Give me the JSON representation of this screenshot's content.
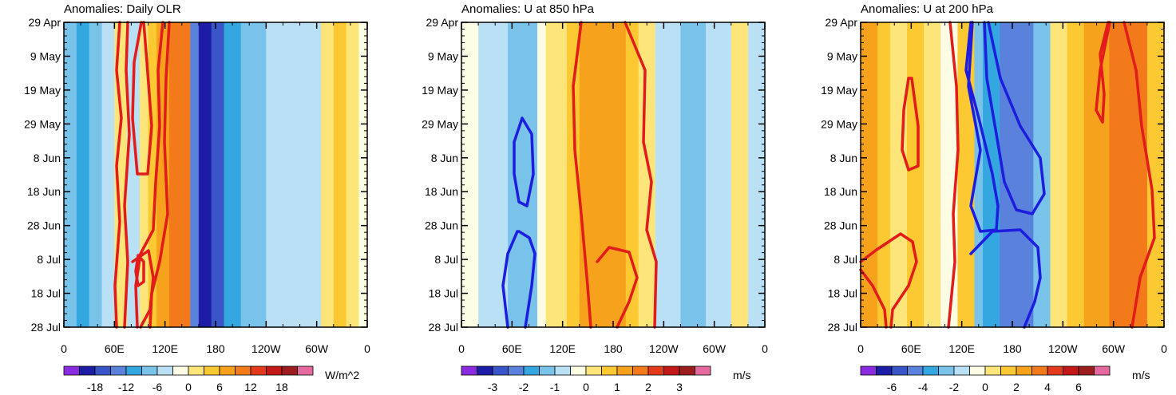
{
  "figure": {
    "panels": [
      {
        "title": "Anomalies: Daily OLR",
        "units": "W/m^2",
        "colorbar_labels": [
          "-18",
          "-12",
          "-6",
          "0",
          "6",
          "12",
          "18"
        ]
      },
      {
        "title": "Anomalies: U at 850 hPa",
        "units": "m/s",
        "colorbar_labels": [
          "-3",
          "-2",
          "-1",
          "0",
          "1",
          "2",
          "3"
        ]
      },
      {
        "title": "Anomalies: U at 200 hPa",
        "units": "m/s",
        "colorbar_labels": [
          "-6",
          "-4",
          "-2",
          "0",
          "2",
          "4",
          "6"
        ]
      }
    ]
  },
  "chart_data": [
    {
      "type": "heatmap",
      "title": "Anomalies: Daily OLR",
      "xlabel": "Longitude",
      "ylabel": "Date",
      "xticks": [
        "0",
        "60E",
        "120E",
        "180",
        "120W",
        "60W",
        "0"
      ],
      "yticks": [
        "29 Apr",
        "9 May",
        "19 May",
        "29 May",
        "8 Jun",
        "18 Jun",
        "28 Jun",
        "8 Jul",
        "18 Jul",
        "28 Jul"
      ],
      "xlim": [
        0,
        360
      ],
      "colorbar": {
        "units": "W/m^2",
        "labels": [
          "-18",
          "-12",
          "-6",
          "0",
          "6",
          "12",
          "18"
        ]
      },
      "bands": [
        {
          "x0": 0,
          "x1": 15,
          "level": -2
        },
        {
          "x0": 15,
          "x1": 30,
          "level": -3
        },
        {
          "x0": 30,
          "x1": 45,
          "level": -2
        },
        {
          "x0": 45,
          "x1": 60,
          "level": -1
        },
        {
          "x0": 60,
          "x1": 75,
          "level": 1
        },
        {
          "x0": 75,
          "x1": 90,
          "level": -1
        },
        {
          "x0": 90,
          "x1": 100,
          "level": 1
        },
        {
          "x0": 100,
          "x1": 110,
          "level": 2
        },
        {
          "x0": 110,
          "x1": 125,
          "level": 3
        },
        {
          "x0": 125,
          "x1": 150,
          "level": 4
        },
        {
          "x0": 150,
          "x1": 160,
          "level": -4
        },
        {
          "x0": 160,
          "x1": 175,
          "level": -6
        },
        {
          "x0": 175,
          "x1": 190,
          "level": -5
        },
        {
          "x0": 190,
          "x1": 210,
          "level": -3
        },
        {
          "x0": 210,
          "x1": 240,
          "level": -2
        },
        {
          "x0": 240,
          "x1": 290,
          "level": -1
        },
        {
          "x0": 290,
          "x1": 305,
          "level": -1
        },
        {
          "x0": 305,
          "x1": 320,
          "level": 1
        },
        {
          "x0": 320,
          "x1": 335,
          "level": 2
        },
        {
          "x0": 335,
          "x1": 350,
          "level": 1
        },
        {
          "x0": 350,
          "x1": 360,
          "level": 0
        }
      ]
    },
    {
      "type": "heatmap",
      "title": "Anomalies: U at 850 hPa",
      "xlabel": "Longitude",
      "ylabel": "Date",
      "xticks": [
        "0",
        "60E",
        "120E",
        "180",
        "120W",
        "60W",
        "0"
      ],
      "yticks": [
        "29 Apr",
        "9 May",
        "19 May",
        "29 May",
        "8 Jun",
        "18 Jun",
        "28 Jun",
        "8 Jul",
        "18 Jul",
        "28 Jul"
      ],
      "xlim": [
        0,
        360
      ],
      "colorbar": {
        "units": "m/s",
        "labels": [
          "-3",
          "-2",
          "-1",
          "0",
          "1",
          "2",
          "3"
        ]
      },
      "bands": [
        {
          "x0": 0,
          "x1": 20,
          "level": 0
        },
        {
          "x0": 20,
          "x1": 40,
          "level": -1
        },
        {
          "x0": 40,
          "x1": 55,
          "level": -1
        },
        {
          "x0": 55,
          "x1": 90,
          "level": -2
        },
        {
          "x0": 90,
          "x1": 100,
          "level": 0
        },
        {
          "x0": 100,
          "x1": 125,
          "level": 1
        },
        {
          "x0": 125,
          "x1": 140,
          "level": 2
        },
        {
          "x0": 140,
          "x1": 195,
          "level": 3
        },
        {
          "x0": 195,
          "x1": 210,
          "level": 2
        },
        {
          "x0": 210,
          "x1": 230,
          "level": 1
        },
        {
          "x0": 230,
          "x1": 260,
          "level": -1
        },
        {
          "x0": 260,
          "x1": 290,
          "level": -2
        },
        {
          "x0": 290,
          "x1": 320,
          "level": -1
        },
        {
          "x0": 320,
          "x1": 340,
          "level": 1
        },
        {
          "x0": 340,
          "x1": 360,
          "level": -1
        }
      ]
    },
    {
      "type": "heatmap",
      "title": "Anomalies: U at 200 hPa",
      "xlabel": "Longitude",
      "ylabel": "Date",
      "xticks": [
        "0",
        "60E",
        "120E",
        "180",
        "120W",
        "60W",
        "0"
      ],
      "yticks": [
        "29 Apr",
        "9 May",
        "19 May",
        "29 May",
        "8 Jun",
        "18 Jun",
        "28 Jun",
        "8 Jul",
        "18 Jul",
        "28 Jul"
      ],
      "xlim": [
        0,
        360
      ],
      "colorbar": {
        "units": "m/s",
        "labels": [
          "-6",
          "-4",
          "-2",
          "0",
          "2",
          "4",
          "6"
        ]
      },
      "bands": [
        {
          "x0": 0,
          "x1": 20,
          "level": 3
        },
        {
          "x0": 20,
          "x1": 35,
          "level": 2
        },
        {
          "x0": 35,
          "x1": 55,
          "level": 1
        },
        {
          "x0": 55,
          "x1": 75,
          "level": 2
        },
        {
          "x0": 75,
          "x1": 95,
          "level": 1
        },
        {
          "x0": 95,
          "x1": 115,
          "level": 0
        },
        {
          "x0": 115,
          "x1": 135,
          "level": 2
        },
        {
          "x0": 135,
          "x1": 145,
          "level": -2
        },
        {
          "x0": 145,
          "x1": 165,
          "level": -3
        },
        {
          "x0": 165,
          "x1": 205,
          "level": -4
        },
        {
          "x0": 205,
          "x1": 225,
          "level": -2
        },
        {
          "x0": 225,
          "x1": 245,
          "level": 1
        },
        {
          "x0": 245,
          "x1": 265,
          "level": 2
        },
        {
          "x0": 265,
          "x1": 295,
          "level": 3
        },
        {
          "x0": 295,
          "x1": 340,
          "level": 4
        },
        {
          "x0": 340,
          "x1": 360,
          "level": 2
        }
      ]
    }
  ]
}
